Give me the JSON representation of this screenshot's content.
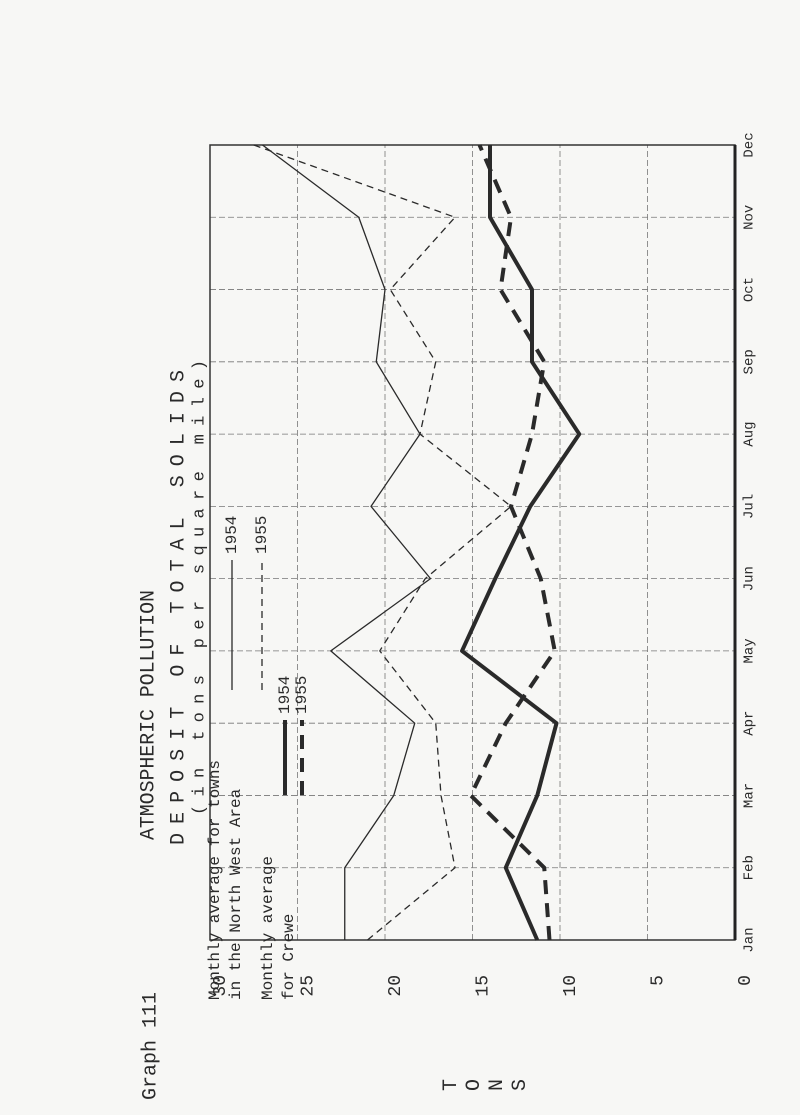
{
  "chart_data": {
    "type": "line",
    "heading": "Graph 111",
    "title": "ATMOSPHERIC POLLUTION",
    "subtitle": "DEPOSIT OF TOTAL SOLIDS",
    "units": "(in tons per square mile)",
    "y_label": "TONS",
    "legend_titles": [
      [
        "Monthly average for towns",
        "in the North West Area"
      ],
      [
        "Monthly average",
        "for Crewe"
      ]
    ],
    "categories": [
      "Jan",
      "Feb",
      "Mar",
      "Apr",
      "May",
      "Jun",
      "Jul",
      "Aug",
      "Sep",
      "Oct",
      "Nov",
      "Dec"
    ],
    "ylim": [
      0,
      30
    ],
    "yticks": [
      0,
      5,
      10,
      15,
      20,
      25,
      30
    ],
    "grid": true,
    "series": [
      {
        "name": "1954",
        "color": "#2a2a2a",
        "line_style": "solid",
        "weight": "light",
        "values": [
          22.3,
          22.3,
          19.5,
          18.3,
          23.1,
          17.4,
          20.8,
          18.0,
          20.5,
          20.0,
          21.5,
          27.0
        ]
      },
      {
        "name": "1955",
        "color": "#2a2a2a",
        "line_style": "dashed",
        "weight": "light",
        "values": [
          21.0,
          16.0,
          16.8,
          17.1,
          20.3,
          17.7,
          12.8,
          18.0,
          17.1,
          19.7,
          16.0,
          27.5
        ]
      },
      {
        "name": "1954",
        "color": "#2a2a2a",
        "line_style": "solid",
        "weight": "heavy",
        "values": [
          11.3,
          13.1,
          11.3,
          10.2,
          15.6,
          13.7,
          11.7,
          8.9,
          11.6,
          11.6,
          14.0,
          14.0
        ]
      },
      {
        "name": "1955",
        "color": "#2a2a2a",
        "line_style": "dashed",
        "weight": "heavy",
        "values": [
          10.6,
          10.9,
          15.1,
          13.1,
          10.3,
          11.1,
          12.8,
          11.6,
          10.9,
          13.4,
          12.8,
          14.6
        ]
      }
    ]
  }
}
